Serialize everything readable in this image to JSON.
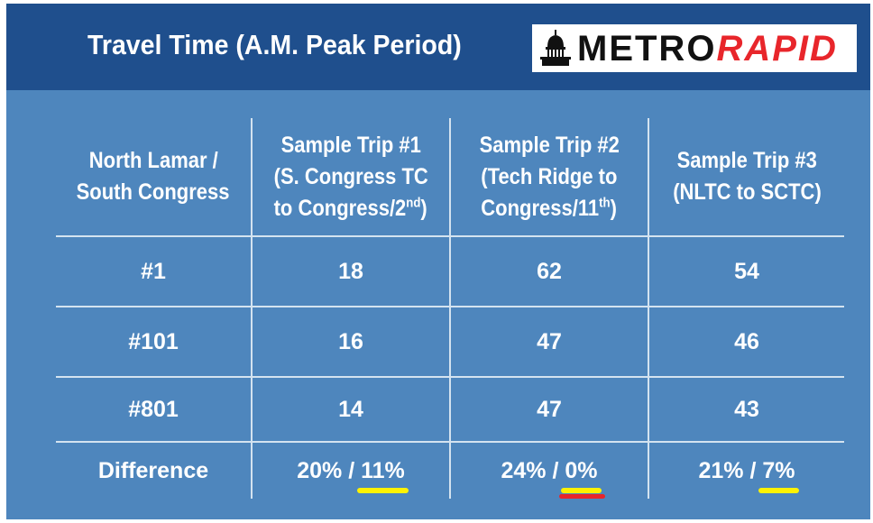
{
  "title": "Travel Time (A.M. Peak Period)",
  "logo": {
    "part1": "METRO",
    "part2": "RAPID",
    "icon": "capitol-icon"
  },
  "table": {
    "header": {
      "corner": [
        "North Lamar /",
        "South Congress"
      ],
      "trip1": {
        "line1": "Sample Trip #1",
        "line2": "(S. Congress TC",
        "line3_main": "to Congress/2",
        "line3_sup": "nd",
        "line3_end": ")"
      },
      "trip2": {
        "line1": "Sample Trip #2",
        "line2": "(Tech Ridge to",
        "line3_main": "Congress/11",
        "line3_sup": "th",
        "line3_end": ")"
      },
      "trip3": {
        "line1": "Sample Trip #3",
        "line2": "(NLTC to SCTC)"
      }
    },
    "rows": [
      {
        "route": "#1",
        "values": [
          "18",
          "62",
          "54"
        ]
      },
      {
        "route": "#101",
        "values": [
          "16",
          "47",
          "46"
        ]
      },
      {
        "route": "#801",
        "values": [
          "14",
          "47",
          "43"
        ]
      }
    ],
    "difference": {
      "label": "Difference",
      "values": [
        {
          "first": "20%",
          "sep": " / ",
          "second": "11%"
        },
        {
          "first": "24%",
          "sep": " / ",
          "second": "0%"
        },
        {
          "first": "21%",
          "sep": " / ",
          "second": "7%"
        }
      ]
    }
  },
  "colors": {
    "background": "#4e86bd",
    "header": "#1f4f8d",
    "highlight": "#fff200",
    "underline_red": "#e8262b"
  }
}
